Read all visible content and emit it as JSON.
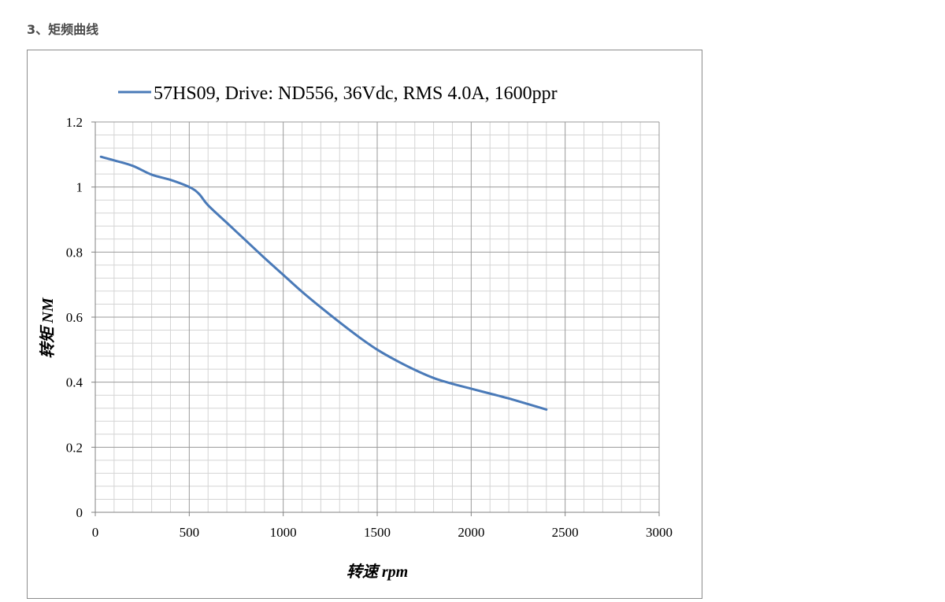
{
  "page": {
    "heading": "3、矩频曲线"
  },
  "chart_data": {
    "type": "line",
    "title": "",
    "xlabel": "转速 rpm",
    "ylabel": "转矩 NM",
    "xlim": [
      0,
      3000
    ],
    "ylim": [
      0,
      1.2
    ],
    "x_major_ticks": [
      0,
      500,
      1000,
      1500,
      2000,
      2500,
      3000
    ],
    "y_major_ticks": [
      0,
      0.2,
      0.4,
      0.6,
      0.8,
      1,
      1.2
    ],
    "x_minor_step": 100,
    "y_minor_step": 0.04,
    "grid": true,
    "legend_position": "top",
    "series": [
      {
        "name": "57HS09, Drive: ND556, 36Vdc, RMS 4.0A, 1600ppr",
        "color": "#4a7ab8",
        "x": [
          30,
          100,
          200,
          300,
          400,
          500,
          550,
          600,
          700,
          800,
          900,
          1000,
          1100,
          1200,
          1300,
          1400,
          1500,
          1600,
          1700,
          1800,
          1900,
          2000,
          2100,
          2200,
          2300,
          2400
        ],
        "y": [
          1.093,
          1.082,
          1.065,
          1.038,
          1.022,
          1.0,
          0.98,
          0.944,
          0.89,
          0.836,
          0.782,
          0.73,
          0.678,
          0.63,
          0.584,
          0.54,
          0.5,
          0.467,
          0.438,
          0.413,
          0.395,
          0.38,
          0.365,
          0.35,
          0.333,
          0.316
        ]
      }
    ]
  }
}
